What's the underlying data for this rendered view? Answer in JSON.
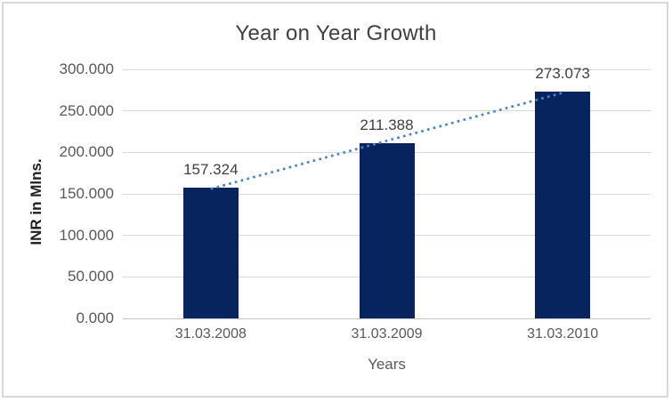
{
  "chart_data": {
    "type": "bar",
    "title": "Year on Year Growth",
    "xlabel": "Years",
    "ylabel": "INR in Mlns.",
    "categories": [
      "31.03.2008",
      "31.03.2009",
      "31.03.2010"
    ],
    "values": [
      157.324,
      211.388,
      273.073
    ],
    "data_labels": [
      "157.324",
      "211.388",
      "273.073"
    ],
    "ylim": [
      0,
      300
    ],
    "ytick_step": 50,
    "ytick_labels": [
      "0.000",
      "50.000",
      "100.000",
      "150.000",
      "200.000",
      "250.000",
      "300.000"
    ],
    "grid": true,
    "legend": "none",
    "trendline": {
      "type": "linear",
      "style": "dotted"
    },
    "colors": {
      "bar": "#08245E",
      "trendline": "#4B85C3",
      "gridline": "#D9D9D9",
      "axis_line": "#C6C6C6",
      "title_text": "#404040",
      "tick_text": "#595959",
      "data_label_text": "#404040",
      "axis_title_text": "#1F1F1F",
      "border": "#D9D9D9",
      "background": "#FFFFFF"
    }
  }
}
